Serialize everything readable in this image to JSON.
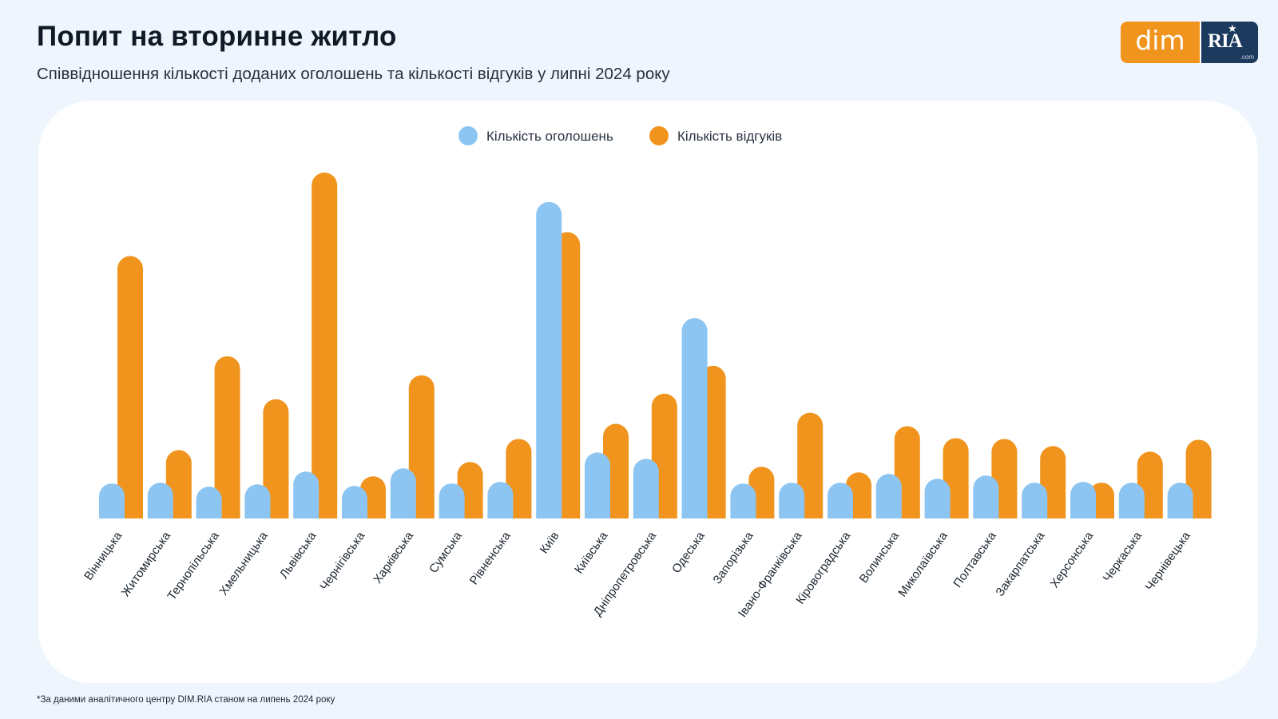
{
  "header": {
    "title": "Попит на вторинне житло",
    "subtitle": "Співвідношення кількості доданих оголошень та кількості відгуків у липні 2024 року"
  },
  "logo": {
    "left_text": "dim",
    "right_text": "RIA",
    "domain_text": ".com"
  },
  "footnote": "*За даними аналітичного центру DIM.RIA станом на липень 2024 року",
  "colors": {
    "listings": "#8dc5f2",
    "responses": "#f0941d",
    "panel": "#ffffff",
    "background": "#eef5fd"
  },
  "chart_data": {
    "type": "bar",
    "title": "Попит на вторинне житло",
    "subtitle": "Співвідношення кількості доданих оголошень та кількості відгуків у липні 2024 року",
    "legend_position": "top-center",
    "grid": false,
    "y_axis_shown": false,
    "ylim": [
      0,
      435
    ],
    "categories": [
      "Вінницька",
      "Житомирська",
      "Тернопільська",
      "Хмельницька",
      "Львівська",
      "Чернігівська",
      "Харківська",
      "Сумська",
      "Рівненська",
      "Київ",
      "Київська",
      "Дніпропетровська",
      "Одеська",
      "Запорізька",
      "Івано-Франківська",
      "Кіровоградська",
      "Волинська",
      "Миколаївська",
      "Полтавська",
      "Закарпатська",
      "Херсонська",
      "Черкаська",
      "Чернівецька"
    ],
    "series": [
      {
        "name": "Кількість оголошень",
        "color": "#8dc5f2",
        "values": [
          44,
          45,
          40,
          43,
          59,
          41,
          63,
          44,
          46,
          398,
          83,
          75,
          252,
          44,
          45,
          45,
          56,
          50,
          54,
          45,
          46,
          45,
          45
        ]
      },
      {
        "name": "Кількість відгуків",
        "color": "#f0941d",
        "values": [
          330,
          86,
          204,
          150,
          435,
          53,
          180,
          71,
          100,
          360,
          119,
          157,
          192,
          65,
          133,
          58,
          116,
          101,
          100,
          91,
          45,
          84,
          99
        ]
      }
    ]
  }
}
